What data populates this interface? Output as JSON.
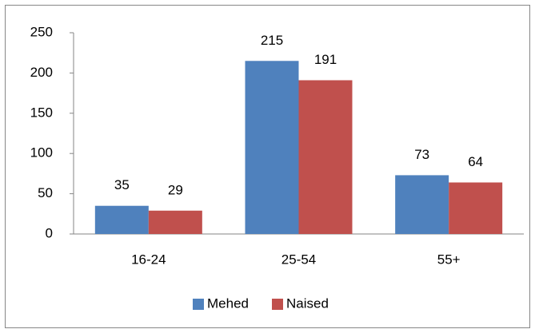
{
  "chart_data": {
    "type": "bar",
    "categories": [
      "16-24",
      "25-54",
      "55+"
    ],
    "series": [
      {
        "name": "Mehed",
        "color": "#4f81bd",
        "values": [
          35,
          215,
          73
        ]
      },
      {
        "name": "Naised",
        "color": "#c0504d",
        "values": [
          29,
          191,
          64
        ]
      }
    ],
    "ylim": [
      0,
      250
    ],
    "yticks": [
      0,
      50,
      100,
      150,
      200,
      250
    ],
    "grid": false,
    "legend": "bottom"
  }
}
